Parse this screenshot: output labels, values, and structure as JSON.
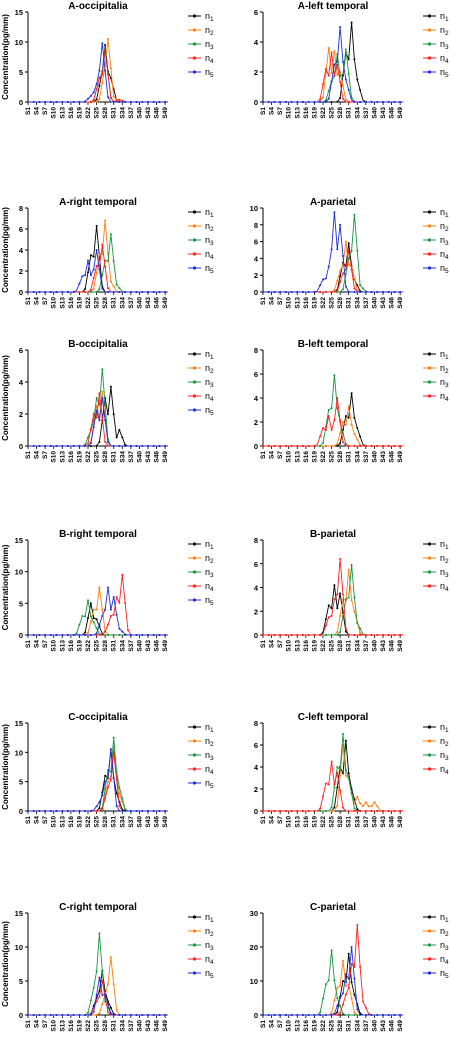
{
  "figure": {
    "x_ticks": [
      "S1",
      "S4",
      "S7",
      "S10",
      "S13",
      "S16",
      "S19",
      "S22",
      "S25",
      "S28",
      "S31",
      "S34",
      "S37",
      "S40",
      "S43",
      "S46",
      "S49"
    ],
    "ylabel": "Concentration(pg/mm)"
  },
  "colors": {
    "n1": "#000000",
    "n2": "#ff7f0e",
    "n3": "#1a9641",
    "n4": "#ff2020",
    "n5": "#1f2fd6"
  },
  "chart_data": [
    {
      "type": "line",
      "title": "A-occipitalia",
      "ylabel": "Concentration(pg/mm)",
      "ylim": [
        0,
        15
      ],
      "yticks": [
        0,
        5,
        10,
        15
      ],
      "series": [
        {
          "name": "n1",
          "key": "n1",
          "peaks": [
            [
              28,
              9.5
            ],
            [
              27,
              5
            ],
            [
              30,
              4
            ]
          ]
        },
        {
          "name": "n2",
          "key": "n2",
          "peaks": [
            [
              29,
              10.5
            ],
            [
              28,
              6
            ],
            [
              31,
              0.8
            ]
          ]
        },
        {
          "name": "n3",
          "key": "n3",
          "peaks": [
            [
              28,
              9
            ],
            [
              26,
              4
            ]
          ]
        },
        {
          "name": "n4",
          "key": "n4",
          "peaks": [
            [
              28,
              8.5
            ],
            [
              26,
              4
            ],
            [
              33,
              0.4
            ]
          ]
        },
        {
          "name": "n5",
          "key": "n5",
          "peaks": [
            [
              27,
              9.8
            ],
            [
              25,
              3
            ],
            [
              23,
              1
            ]
          ]
        }
      ]
    },
    {
      "type": "line",
      "title": "A-left temporal",
      "ylabel": "",
      "ylim": [
        0,
        6
      ],
      "yticks": [
        0,
        2,
        4,
        6
      ],
      "series": [
        {
          "name": "n1",
          "key": "n1",
          "peaks": [
            [
              32,
              5.3
            ],
            [
              30,
              3.3
            ],
            [
              34,
              1.5
            ]
          ]
        },
        {
          "name": "n2",
          "key": "n2",
          "peaks": [
            [
              24,
              3.6
            ],
            [
              26,
              3.4
            ],
            [
              28,
              2
            ]
          ]
        },
        {
          "name": "n3",
          "key": "n3",
          "peaks": [
            [
              30,
              3.5
            ],
            [
              27,
              3.2
            ],
            [
              25,
              1.4
            ]
          ]
        },
        {
          "name": "n4",
          "key": "n4",
          "peaks": [
            [
              25,
              3.3
            ],
            [
              23,
              2.2
            ],
            [
              27,
              2.5
            ]
          ]
        },
        {
          "name": "n5",
          "key": "n5",
          "peaks": [
            [
              28,
              5
            ],
            [
              26,
              2.5
            ],
            [
              30,
              1.5
            ]
          ]
        }
      ]
    },
    {
      "type": "line",
      "title": "A-right temporal",
      "ylabel": "Concentration(pg/mm)",
      "ylim": [
        0,
        8
      ],
      "yticks": [
        0,
        2,
        4,
        6,
        8
      ],
      "series": [
        {
          "name": "n1",
          "key": "n1",
          "peaks": [
            [
              25,
              6.3
            ],
            [
              23,
              3.5
            ]
          ]
        },
        {
          "name": "n2",
          "key": "n2",
          "peaks": [
            [
              28,
              6.8
            ],
            [
              26,
              3.5
            ],
            [
              30,
              1
            ]
          ]
        },
        {
          "name": "n3",
          "key": "n3",
          "peaks": [
            [
              30,
              5.5
            ],
            [
              28,
              3
            ],
            [
              32,
              0.7
            ]
          ]
        },
        {
          "name": "n4",
          "key": "n4",
          "peaks": [
            [
              27,
              4.5
            ],
            [
              25,
              2.5
            ]
          ]
        },
        {
          "name": "n5",
          "key": "n5",
          "peaks": [
            [
              22,
              3
            ],
            [
              20,
              1.5
            ],
            [
              25,
              4
            ]
          ]
        }
      ]
    },
    {
      "type": "line",
      "title": "A-parietal",
      "ylabel": "",
      "ylim": [
        0,
        10
      ],
      "yticks": [
        0,
        2,
        4,
        6,
        8,
        10
      ],
      "series": [
        {
          "name": "n1",
          "key": "n1",
          "peaks": [
            [
              31,
              5.8
            ],
            [
              29,
              3.5
            ],
            [
              33,
              1.5
            ]
          ]
        },
        {
          "name": "n2",
          "key": "n2",
          "peaks": [
            [
              30,
              6
            ],
            [
              32,
              3
            ],
            [
              28,
              2.5
            ]
          ]
        },
        {
          "name": "n3",
          "key": "n3",
          "peaks": [
            [
              33,
              9.2
            ],
            [
              31,
              4
            ],
            [
              35,
              0.8
            ]
          ]
        },
        {
          "name": "n4",
          "key": "n4",
          "peaks": [
            [
              31,
              5
            ],
            [
              29,
              2.2
            ]
          ]
        },
        {
          "name": "n5",
          "key": "n5",
          "peaks": [
            [
              26,
              9.5
            ],
            [
              24,
              3
            ],
            [
              22,
              1.5
            ],
            [
              28,
              8
            ]
          ]
        }
      ]
    },
    {
      "type": "line",
      "title": "B-occipitalia",
      "ylabel": "Concentration(pg/mm)",
      "ylim": [
        0,
        6
      ],
      "yticks": [
        0,
        2,
        4,
        6
      ],
      "series": [
        {
          "name": "n1",
          "key": "n1",
          "peaks": [
            [
              30,
              3.7
            ],
            [
              28,
              3
            ],
            [
              33,
              1
            ]
          ]
        },
        {
          "name": "n2",
          "key": "n2",
          "peaks": [
            [
              27,
              3.4
            ],
            [
              25,
              2.5
            ]
          ]
        },
        {
          "name": "n3",
          "key": "n3",
          "peaks": [
            [
              27,
              4.8
            ],
            [
              25,
              3
            ],
            [
              23,
              1
            ]
          ]
        },
        {
          "name": "n4",
          "key": "n4",
          "peaks": [
            [
              26,
              3.3
            ],
            [
              24,
              2
            ]
          ]
        },
        {
          "name": "n5",
          "key": "n5",
          "peaks": [
            [
              27,
              3
            ],
            [
              25,
              2.2
            ]
          ]
        }
      ]
    },
    {
      "type": "line",
      "title": "B-left temporal",
      "ylabel": "",
      "ylim": [
        0,
        8
      ],
      "yticks": [
        0,
        2,
        4,
        6,
        8
      ],
      "series": [
        {
          "name": "n1",
          "key": "n1",
          "peaks": [
            [
              32,
              4.4
            ],
            [
              30,
              2.5
            ],
            [
              34,
              1.5
            ]
          ]
        },
        {
          "name": "n2",
          "key": "n2",
          "peaks": [
            [
              31,
              3.3
            ],
            [
              29,
              2
            ],
            [
              33,
              1
            ]
          ]
        },
        {
          "name": "n3",
          "key": "n3",
          "peaks": [
            [
              26,
              5.9
            ],
            [
              24,
              3
            ],
            [
              28,
              2
            ]
          ]
        },
        {
          "name": "n4",
          "key": "n4",
          "peaks": [
            [
              24,
              2.5
            ],
            [
              22,
              1.5
            ],
            [
              27,
              4
            ]
          ]
        }
      ]
    },
    {
      "type": "line",
      "title": "B-right temporal",
      "ylabel": "Concentration(pg/mm)",
      "ylim": [
        0,
        15
      ],
      "yticks": [
        0,
        5,
        10,
        15
      ],
      "series": [
        {
          "name": "n1",
          "key": "n1",
          "peaks": [
            [
              23,
              5
            ],
            [
              25,
              2.5
            ]
          ]
        },
        {
          "name": "n2",
          "key": "n2",
          "peaks": [
            [
              26,
              7.5
            ],
            [
              24,
              4
            ]
          ]
        },
        {
          "name": "n3",
          "key": "n3",
          "peaks": [
            [
              22,
              5.5
            ],
            [
              20,
              3
            ],
            [
              24,
              2
            ]
          ]
        },
        {
          "name": "n4",
          "key": "n4",
          "peaks": [
            [
              34,
              9.5
            ],
            [
              32,
              6
            ],
            [
              30,
              3
            ],
            [
              29,
              1
            ]
          ]
        },
        {
          "name": "n5",
          "key": "n5",
          "peaks": [
            [
              29,
              7.5
            ],
            [
              31,
              6
            ],
            [
              33,
              1
            ],
            [
              27,
              3
            ]
          ]
        }
      ]
    },
    {
      "type": "line",
      "title": "B-parietal",
      "ylabel": "",
      "ylim": [
        0,
        8
      ],
      "yticks": [
        0,
        2,
        4,
        6,
        8
      ],
      "series": [
        {
          "name": "n1",
          "key": "n1",
          "peaks": [
            [
              26,
              4.2
            ],
            [
              24,
              2.5
            ],
            [
              28,
              3.5
            ]
          ]
        },
        {
          "name": "n2",
          "key": "n2",
          "peaks": [
            [
              31,
              5.5
            ],
            [
              29,
              3
            ],
            [
              33,
              2
            ]
          ]
        },
        {
          "name": "n3",
          "key": "n3",
          "peaks": [
            [
              32,
              5.9
            ],
            [
              30,
              3
            ],
            [
              34,
              1
            ]
          ]
        },
        {
          "name": "n4",
          "key": "n4",
          "peaks": [
            [
              28,
              6.4
            ],
            [
              26,
              3
            ],
            [
              24,
              1.5
            ]
          ]
        }
      ]
    },
    {
      "type": "line",
      "title": "C-occipitalia",
      "ylabel": "Concentration(pg/mm)",
      "ylim": [
        0,
        15
      ],
      "yticks": [
        0,
        5,
        10,
        15
      ],
      "series": [
        {
          "name": "n1",
          "key": "n1",
          "peaks": [
            [
              30,
              10.5
            ],
            [
              28,
              6
            ],
            [
              32,
              3
            ]
          ]
        },
        {
          "name": "n2",
          "key": "n2",
          "peaks": [
            [
              31,
              11
            ],
            [
              33,
              3
            ],
            [
              29,
              5
            ]
          ]
        },
        {
          "name": "n3",
          "key": "n3",
          "peaks": [
            [
              31,
              12.5
            ],
            [
              29,
              7
            ],
            [
              33,
              4
            ]
          ]
        },
        {
          "name": "n4",
          "key": "n4",
          "peaks": [
            [
              31,
              10
            ],
            [
              29,
              4
            ]
          ]
        },
        {
          "name": "n5",
          "key": "n5",
          "peaks": [
            [
              30,
              10.5
            ],
            [
              28,
              5
            ],
            [
              26,
              1.5
            ]
          ]
        }
      ]
    },
    {
      "type": "line",
      "title": "C-left temporal",
      "ylabel": "",
      "ylim": [
        0,
        8
      ],
      "yticks": [
        0,
        2,
        4,
        6,
        8
      ],
      "series": [
        {
          "name": "n1",
          "key": "n1",
          "peaks": [
            [
              30,
              6.4
            ],
            [
              28,
              4
            ],
            [
              32,
              2
            ]
          ]
        },
        {
          "name": "n2",
          "key": "n2",
          "peaks": [
            [
              29,
              6
            ],
            [
              31,
              3
            ],
            [
              34,
              1.3
            ],
            [
              37,
              0.8
            ],
            [
              40,
              0.8
            ]
          ]
        },
        {
          "name": "n3",
          "key": "n3",
          "peaks": [
            [
              29,
              7
            ],
            [
              27,
              4
            ],
            [
              31,
              3
            ]
          ]
        },
        {
          "name": "n4",
          "key": "n4",
          "peaks": [
            [
              25,
              4.5
            ],
            [
              23,
              2.5
            ],
            [
              27,
              3.5
            ]
          ]
        }
      ]
    },
    {
      "type": "line",
      "title": "C-right temporal",
      "ylabel": "Concentration(pg/mm)",
      "ylim": [
        0,
        15
      ],
      "yticks": [
        0,
        5,
        10,
        15
      ],
      "series": [
        {
          "name": "n1",
          "key": "n1",
          "peaks": [
            [
              27,
              6.5
            ],
            [
              25,
              2.5
            ],
            [
              29,
              2
            ]
          ]
        },
        {
          "name": "n2",
          "key": "n2",
          "peaks": [
            [
              30,
              8.5
            ],
            [
              28,
              3
            ]
          ]
        },
        {
          "name": "n3",
          "key": "n3",
          "peaks": [
            [
              26,
              12
            ],
            [
              24,
              4
            ],
            [
              28,
              2
            ]
          ]
        },
        {
          "name": "n4",
          "key": "n4",
          "peaks": [
            [
              27,
              5
            ],
            [
              25,
              2
            ]
          ]
        },
        {
          "name": "n5",
          "key": "n5",
          "peaks": [
            [
              26,
              5.5
            ],
            [
              28,
              3
            ]
          ]
        }
      ]
    },
    {
      "type": "line",
      "title": "C-parietal",
      "ylabel": "",
      "ylim": [
        0,
        30
      ],
      "yticks": [
        0,
        10,
        20,
        30
      ],
      "series": [
        {
          "name": "n1",
          "key": "n1",
          "peaks": [
            [
              31,
              18
            ],
            [
              29,
              10
            ],
            [
              33,
              6
            ]
          ]
        },
        {
          "name": "n2",
          "key": "n2",
          "peaks": [
            [
              29,
              16
            ],
            [
              27,
              8
            ],
            [
              31,
              9
            ]
          ]
        },
        {
          "name": "n3",
          "key": "n3",
          "peaks": [
            [
              25,
              19
            ],
            [
              23,
              9
            ],
            [
              27,
              5
            ]
          ]
        },
        {
          "name": "n4",
          "key": "n4",
          "peaks": [
            [
              34,
              26.5
            ],
            [
              32,
              15
            ],
            [
              30,
              6
            ],
            [
              36,
              4
            ]
          ]
        },
        {
          "name": "n5",
          "key": "n5",
          "peaks": [
            [
              32,
              20
            ],
            [
              30,
              12
            ],
            [
              28,
              5
            ]
          ]
        }
      ]
    }
  ]
}
